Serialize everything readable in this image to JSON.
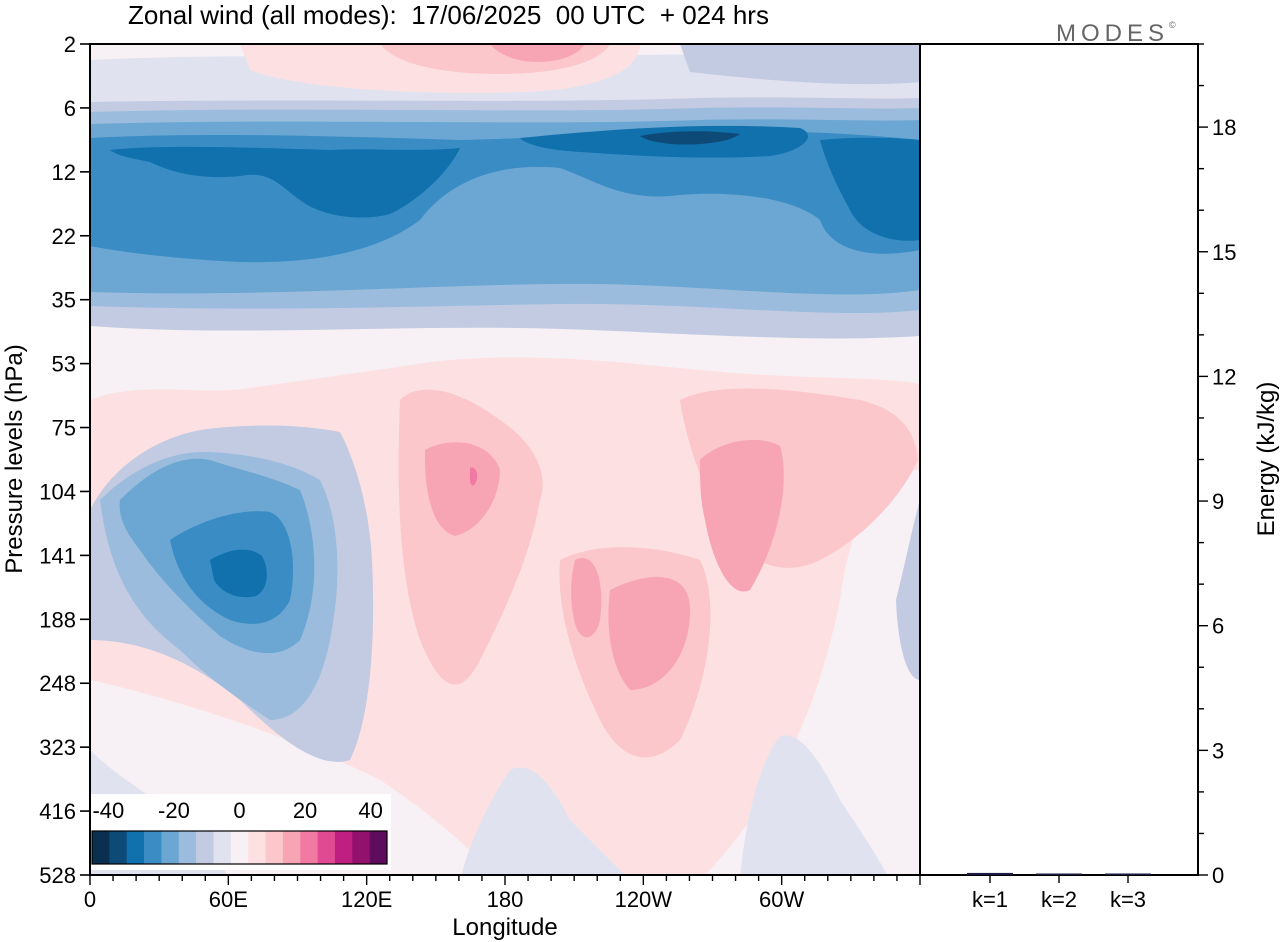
{
  "title": "Zonal wind (all modes):  17/06/2025  00 UTC  + 024 hrs",
  "logo": {
    "text": "MODES",
    "mark": "©"
  },
  "chart_data": [
    {
      "type": "heatmap",
      "variable": "Zonal wind",
      "xlabel": "Longitude",
      "ylabel": "Pressure levels (hPa)",
      "x_ticks": [
        "0",
        "60E",
        "120E",
        "180",
        "120W",
        "60W"
      ],
      "x_tick_values": [
        0,
        60,
        120,
        180,
        240,
        300
      ],
      "xlim": [
        0,
        360
      ],
      "y_ticks": [
        "2",
        "6",
        "12",
        "22",
        "35",
        "53",
        "75",
        "104",
        "141",
        "188",
        "248",
        "323",
        "416",
        "528"
      ],
      "ylim": [
        2,
        528
      ],
      "y_direction": "pressure increasing downward",
      "colorbar": {
        "tick_labels": [
          "-40",
          "-20",
          "0",
          "20",
          "40"
        ],
        "range": [
          -45,
          45
        ],
        "colors": [
          "#0b2f4f",
          "#0d4a78",
          "#1071ad",
          "#3a8cc4",
          "#6ba7d2",
          "#9bbcdc",
          "#c3cbe2",
          "#e1e2ef",
          "#f7f1f6",
          "#fde1e2",
          "#fbc7cb",
          "#f7a5b5",
          "#f07aa2",
          "#df4a93",
          "#bf1f80",
          "#92116d",
          "#5e0c5e"
        ]
      },
      "features": [
        {
          "lon_range": [
            0,
            360
          ],
          "pressure_range": [
            6,
            35
          ],
          "value_range": [
            -25,
            -15
          ],
          "description": "upper easterly band"
        },
        {
          "lon_range": [
            30,
            105
          ],
          "pressure_range": [
            90,
            250
          ],
          "value_min": -20
        },
        {
          "lon_range": [
            135,
            175
          ],
          "pressure_range": [
            60,
            250
          ],
          "value_max": 12
        },
        {
          "lon_range": [
            205,
            260
          ],
          "pressure_range": [
            120,
            260
          ],
          "value_max": 10
        },
        {
          "lon_range": [
            265,
            340
          ],
          "pressure_range": [
            60,
            180
          ],
          "value_max": 8
        },
        {
          "lon_range": [
            160,
            230
          ],
          "pressure_range": [
            2,
            4
          ],
          "value_max": 8
        }
      ]
    },
    {
      "type": "bar",
      "categories": [
        "k=1",
        "k=2",
        "k=3"
      ],
      "values": [
        0.05,
        0.03,
        0.01
      ],
      "ylabel": "Energy (kJ/kg)",
      "y_ticks": [
        0,
        3,
        6,
        9,
        12,
        15,
        18
      ],
      "ylim": [
        0,
        20
      ]
    }
  ]
}
